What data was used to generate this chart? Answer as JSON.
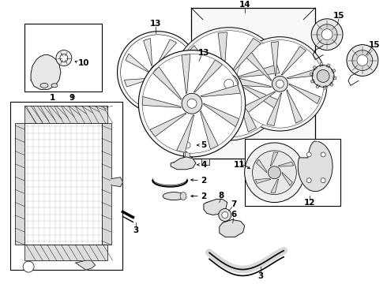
{
  "bg_color": "#ffffff",
  "lc": "#2a2a2a",
  "lw": 0.7,
  "figsize": [
    4.9,
    3.6
  ],
  "dpi": 100
}
